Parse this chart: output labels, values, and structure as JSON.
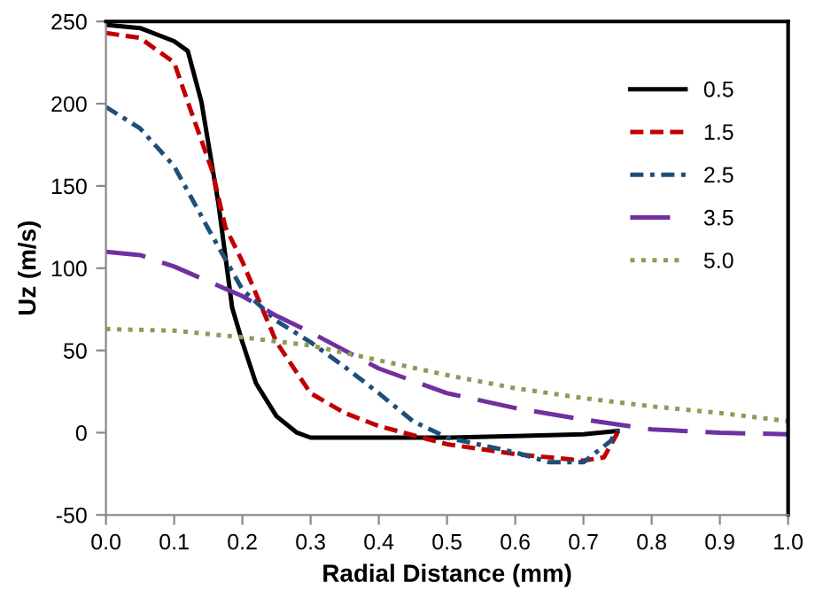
{
  "chart_data": {
    "type": "line",
    "xlabel": "Radial Distance (mm)",
    "ylabel": "Uz (m/s)",
    "xlim": [
      0,
      1.0
    ],
    "ylim": [
      -50,
      250
    ],
    "xticks": [
      {
        "value": 0,
        "label": "0.0"
      },
      0.1,
      0.2,
      0.3,
      0.4,
      0.5,
      0.6,
      0.7,
      0.8,
      0.9,
      {
        "value": 1.0,
        "label": "1.0"
      }
    ],
    "yticks": [
      -50,
      0,
      50,
      100,
      150,
      200,
      250
    ],
    "grid": false,
    "legend": "top right",
    "marker": "none",
    "series": [
      {
        "name": "0.5",
        "color": "#000000",
        "line_style": "solid",
        "x": [
          0,
          0.05,
          0.1,
          0.12,
          0.14,
          0.165,
          0.185,
          0.2,
          0.22,
          0.25,
          0.28,
          0.3,
          0.4,
          0.5,
          0.6,
          0.7,
          0.75
        ],
        "values": [
          248,
          246,
          238,
          232,
          201,
          139,
          76,
          55,
          30,
          10,
          0,
          -3,
          -3,
          -3,
          -2,
          -1,
          1
        ]
      },
      {
        "name": "1.5",
        "color": "#c00000",
        "line_style": "dashed",
        "x": [
          0,
          0.05,
          0.1,
          0.12,
          0.156,
          0.175,
          0.2,
          0.25,
          0.3,
          0.35,
          0.4,
          0.5,
          0.6,
          0.7,
          0.73,
          0.75
        ],
        "values": [
          243,
          240,
          225,
          201,
          159,
          125,
          104,
          55,
          24,
          12,
          4,
          -7,
          -13,
          -17,
          -15,
          0
        ]
      },
      {
        "name": "2.5",
        "color": "#1f4e79",
        "line_style": "dashdot",
        "x": [
          0,
          0.05,
          0.1,
          0.15,
          0.2,
          0.25,
          0.3,
          0.35,
          0.4,
          0.45,
          0.5,
          0.6,
          0.65,
          0.7,
          0.74,
          0.75
        ],
        "values": [
          198,
          185,
          162,
          124,
          87,
          68,
          55,
          40,
          24,
          7,
          -3,
          -12,
          -18,
          -18,
          -5,
          2
        ]
      },
      {
        "name": "3.5",
        "color": "#7030a0",
        "line_style": "longdash",
        "x": [
          0,
          0.05,
          0.1,
          0.15,
          0.2,
          0.25,
          0.3,
          0.35,
          0.4,
          0.5,
          0.6,
          0.7,
          0.8,
          0.9,
          1.0
        ],
        "values": [
          110,
          108,
          101,
          92,
          83,
          71,
          61,
          50,
          39,
          24,
          15,
          8,
          2,
          0,
          -1
        ]
      },
      {
        "name": "5.0",
        "color": "#8f9a5a",
        "line_style": "dotted",
        "x": [
          0,
          0.1,
          0.2,
          0.3,
          0.4,
          0.5,
          0.6,
          0.7,
          0.8,
          0.9,
          1.0
        ],
        "values": [
          63,
          62,
          58,
          53,
          44,
          35,
          27,
          21,
          16,
          12,
          7
        ]
      }
    ]
  }
}
